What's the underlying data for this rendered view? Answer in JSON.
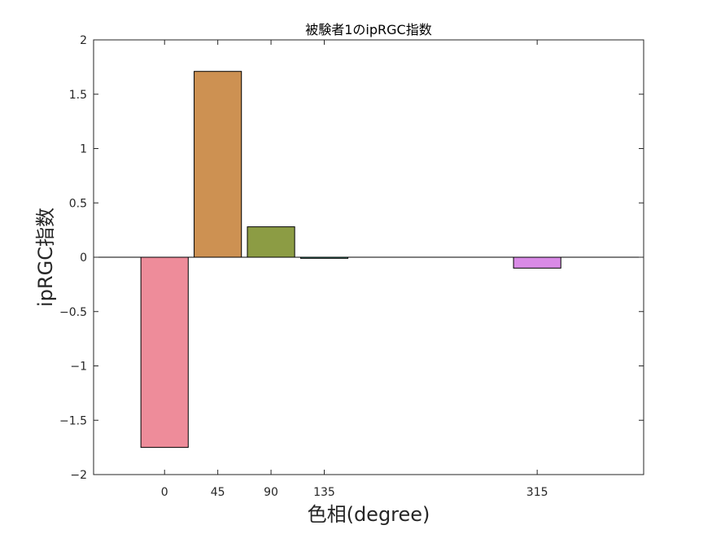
{
  "chart_data": {
    "type": "bar",
    "title": "被験者1のipRGC指数",
    "xlabel": "色相(degree)",
    "ylabel": "ipRGC指数",
    "ylim": [
      -2,
      2
    ],
    "xlim": [
      -60,
      405
    ],
    "x_ticks": [
      "0",
      "45",
      "90",
      "135",
      "315"
    ],
    "y_ticks": [
      "2",
      "1.5",
      "1",
      "0.5",
      "0",
      "-0.5",
      "-1",
      "-1.5",
      "-2"
    ],
    "bar_width_deg": 40,
    "bars": [
      {
        "x": 0,
        "value": -1.75,
        "color": "#ee8c9a"
      },
      {
        "x": 45,
        "value": 1.71,
        "color": "#cd9152"
      },
      {
        "x": 90,
        "value": 0.28,
        "color": "#8c9c44"
      },
      {
        "x": 135,
        "value": -0.01,
        "color": "#3cae8f"
      },
      {
        "x": 315,
        "value": -0.1,
        "color": "#d98ae6"
      }
    ],
    "grid": false,
    "legend": "none"
  }
}
